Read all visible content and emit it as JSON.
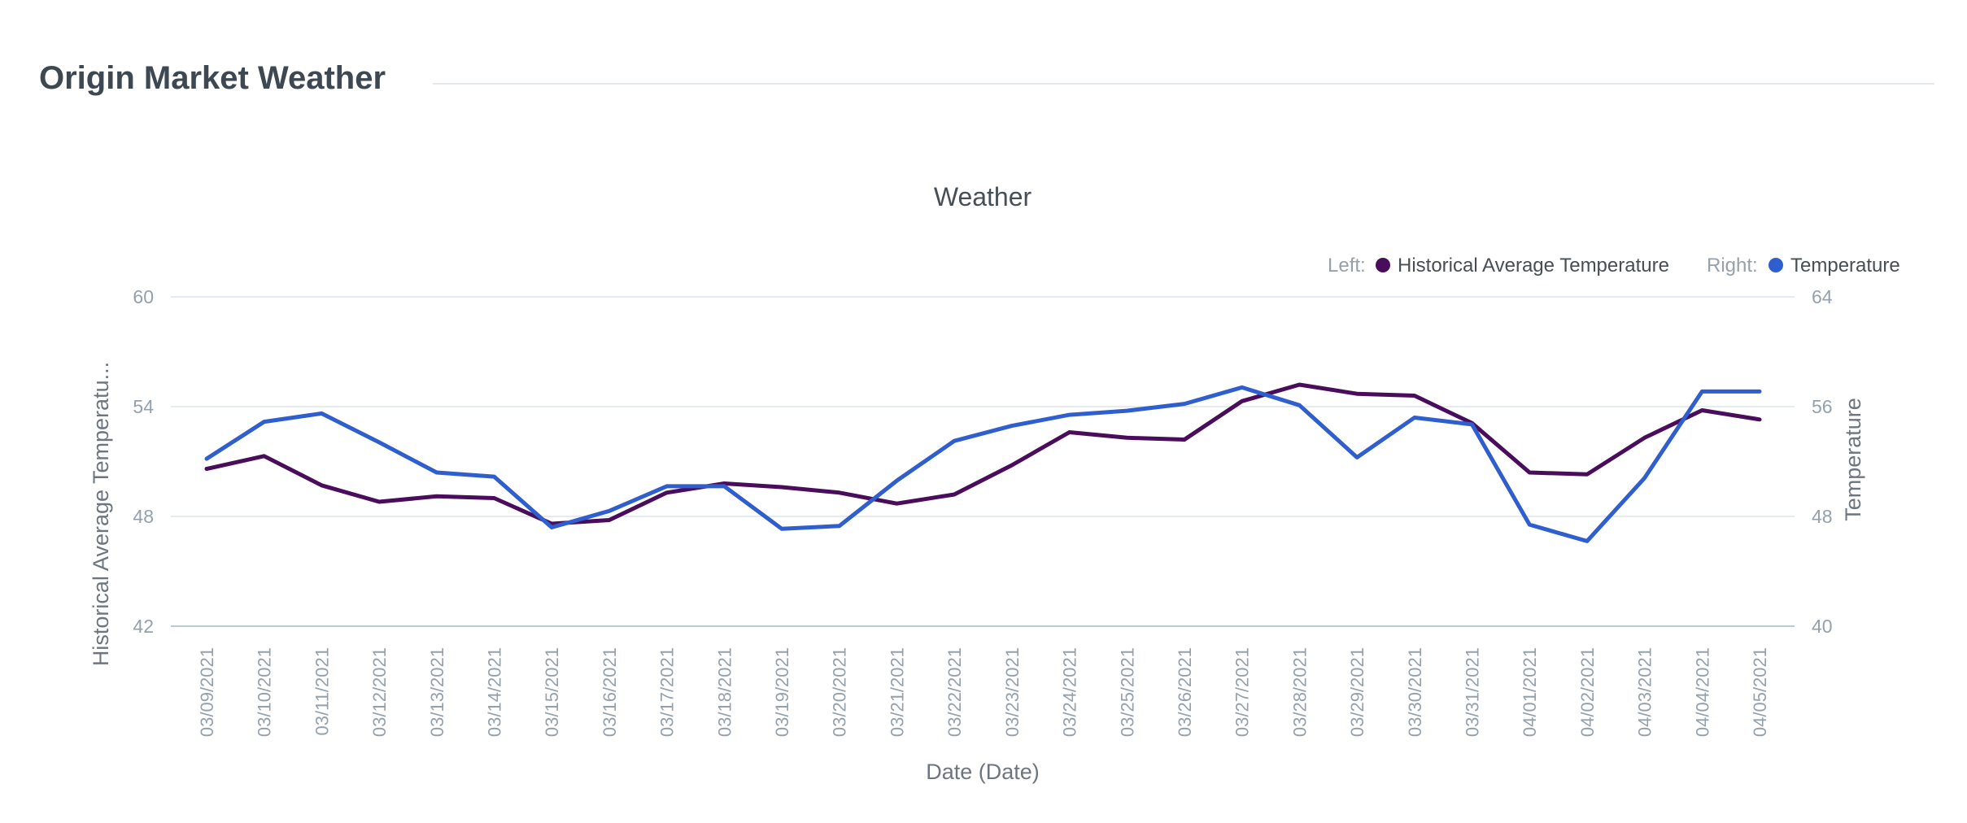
{
  "header": {
    "title": "Origin Market Weather"
  },
  "colors": {
    "historical": "#4a0d5c",
    "temperature": "#2f5ecf",
    "grid": "#e6ebef",
    "axis": "#b9ccd6"
  },
  "chart_data": {
    "type": "line",
    "title": "Weather",
    "xlabel": "Date (Date)",
    "ylabel_left": "Historical Average Temperatu...",
    "ylabel_right": "Temperature",
    "ylim_left": [
      42,
      60
    ],
    "ylim_right": [
      40,
      64
    ],
    "yticks_left": [
      "60",
      "54",
      "48",
      "42"
    ],
    "yticks_right": [
      "64",
      "56",
      "48",
      "40"
    ],
    "grid": true,
    "legend": {
      "placement": "top-right",
      "left_prefix": "Left:",
      "right_prefix": "Right:",
      "left_label": "Historical Average Temperature",
      "right_label": "Temperature"
    },
    "categories": [
      "03/09/2021",
      "03/10/2021",
      "03/11/2021",
      "03/12/2021",
      "03/13/2021",
      "03/14/2021",
      "03/15/2021",
      "03/16/2021",
      "03/17/2021",
      "03/18/2021",
      "03/19/2021",
      "03/20/2021",
      "03/21/2021",
      "03/22/2021",
      "03/23/2021",
      "03/24/2021",
      "03/25/2021",
      "03/26/2021",
      "03/27/2021",
      "03/28/2021",
      "03/29/2021",
      "03/30/2021",
      "03/31/2021",
      "04/01/2021",
      "04/02/2021",
      "04/03/2021",
      "04/04/2021",
      "04/05/2021"
    ],
    "series": [
      {
        "name": "Historical Average Temperature",
        "axis": "left",
        "values": [
          50.6,
          51.3,
          49.7,
          48.8,
          49.1,
          49.0,
          47.6,
          47.8,
          49.3,
          49.8,
          49.6,
          49.3,
          48.7,
          49.2,
          50.8,
          52.6,
          52.3,
          52.2,
          54.3,
          55.2,
          54.7,
          54.6,
          53.1,
          50.4,
          50.3,
          52.3,
          53.8,
          53.3
        ]
      },
      {
        "name": "Temperature",
        "axis": "right",
        "values": [
          52.2,
          54.9,
          55.5,
          53.4,
          51.2,
          50.9,
          47.2,
          48.4,
          50.2,
          50.2,
          47.1,
          47.3,
          50.6,
          53.5,
          54.6,
          55.4,
          55.7,
          56.2,
          57.4,
          56.1,
          52.3,
          55.2,
          54.7,
          47.4,
          46.2,
          50.8,
          57.1,
          57.1
        ]
      }
    ]
  }
}
